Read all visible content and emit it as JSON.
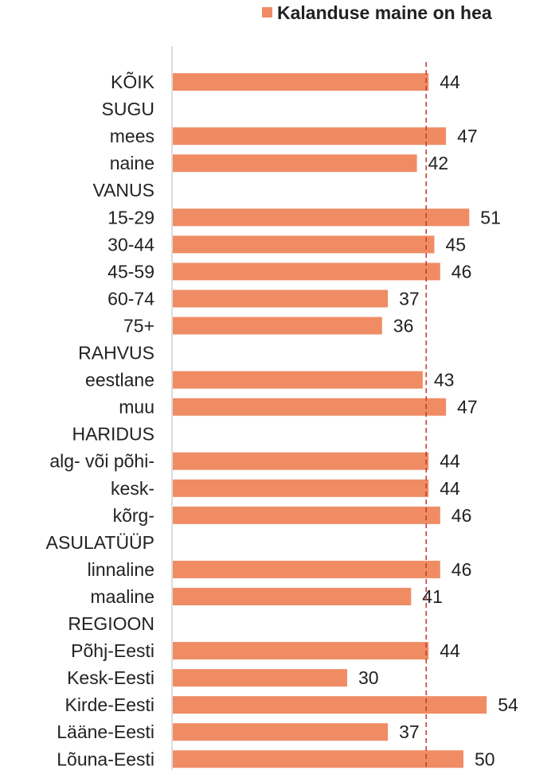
{
  "chart_data": {
    "type": "bar",
    "orientation": "horizontal",
    "legend": {
      "position": "top-right",
      "entries": [
        "Kalanduse maine on hea"
      ]
    },
    "series": [
      {
        "name": "Kalanduse maine on hea",
        "color": "#F08C64"
      }
    ],
    "reference_line": {
      "value": 44,
      "style": "dashed",
      "color": "#C0392B"
    },
    "xlim": [
      0,
      60
    ],
    "grid": false,
    "rows": [
      {
        "label": "KÕIK",
        "value": 44
      },
      {
        "label": "SUGU",
        "value": null
      },
      {
        "label": "mees",
        "value": 47
      },
      {
        "label": "naine",
        "value": 42
      },
      {
        "label": "VANUS",
        "value": null
      },
      {
        "label": "15-29",
        "value": 51
      },
      {
        "label": "30-44",
        "value": 45
      },
      {
        "label": "45-59",
        "value": 46
      },
      {
        "label": "60-74",
        "value": 37
      },
      {
        "label": "75+",
        "value": 36
      },
      {
        "label": "RAHVUS",
        "value": null
      },
      {
        "label": "eestlane",
        "value": 43
      },
      {
        "label": "muu",
        "value": 47
      },
      {
        "label": "HARIDUS",
        "value": null
      },
      {
        "label": "alg- või põhi-",
        "value": 44
      },
      {
        "label": "kesk-",
        "value": 44
      },
      {
        "label": "kõrg-",
        "value": 46
      },
      {
        "label": "ASULATÜÜP",
        "value": null
      },
      {
        "label": "linnaline",
        "value": 46
      },
      {
        "label": "maaline",
        "value": 41
      },
      {
        "label": "REGIOON",
        "value": null
      },
      {
        "label": "Põhj-Eesti",
        "value": 44
      },
      {
        "label": "Kesk-Eesti",
        "value": 30
      },
      {
        "label": "Kirde-Eesti",
        "value": 54
      },
      {
        "label": "Lääne-Eesti",
        "value": 37
      },
      {
        "label": "Lõuna-Eesti",
        "value": 50
      }
    ]
  }
}
